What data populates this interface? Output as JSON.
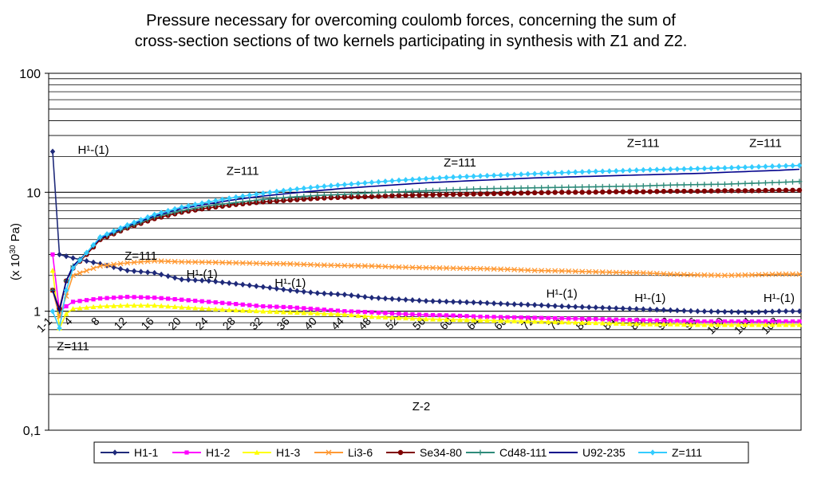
{
  "chart_data": {
    "type": "line",
    "title_line1": "Pressure necessary for overcoming coulomb forces, concerning the sum of",
    "title_line2": "cross-section sections of two kernels participating in synthesis with Z1 and Z2.",
    "xlabel": "Z-2",
    "ylabel": "(x 10^30 Pa)",
    "y_scale": "log",
    "ylim": [
      0.1,
      100
    ],
    "y_ticks": [
      {
        "value": 100,
        "label": "100"
      },
      {
        "value": 10,
        "label": "10"
      },
      {
        "value": 1,
        "label": "1"
      },
      {
        "value": 0.1,
        "label": "0,1"
      }
    ],
    "x_range": [
      1,
      111
    ],
    "x_tick_labels": [
      "1-1",
      "4",
      "8",
      "12",
      "16",
      "20",
      "24",
      "28",
      "32",
      "36",
      "40",
      "44",
      "48",
      "52",
      "56",
      "60",
      "64",
      "68",
      "72",
      "76",
      "80",
      "84",
      "88",
      "92",
      "96",
      "100",
      "104",
      "108"
    ],
    "grid": true,
    "legend_position": "bottom",
    "series": [
      {
        "name": "H1-1",
        "color": "#1f2a7a",
        "marker": "diamond",
        "points": [
          [
            1,
            22
          ],
          [
            2,
            3.0
          ],
          [
            4,
            2.8
          ],
          [
            8,
            2.5
          ],
          [
            12,
            2.2
          ],
          [
            16,
            2.1
          ],
          [
            20,
            1.85
          ],
          [
            24,
            1.8
          ],
          [
            28,
            1.7
          ],
          [
            32,
            1.6
          ],
          [
            36,
            1.5
          ],
          [
            40,
            1.42
          ],
          [
            44,
            1.38
          ],
          [
            48,
            1.3
          ],
          [
            52,
            1.26
          ],
          [
            56,
            1.22
          ],
          [
            60,
            1.2
          ],
          [
            64,
            1.18
          ],
          [
            68,
            1.15
          ],
          [
            72,
            1.13
          ],
          [
            76,
            1.1
          ],
          [
            80,
            1.08
          ],
          [
            84,
            1.06
          ],
          [
            88,
            1.04
          ],
          [
            92,
            1.02
          ],
          [
            96,
            1.0
          ],
          [
            100,
            0.99
          ],
          [
            104,
            0.98
          ],
          [
            108,
            1.0
          ],
          [
            111,
            1.0
          ]
        ]
      },
      {
        "name": "H1-2",
        "color": "#ff00ff",
        "marker": "square",
        "points": [
          [
            1,
            3.0
          ],
          [
            2,
            1.0
          ],
          [
            3,
            1.1
          ],
          [
            4,
            1.2
          ],
          [
            8,
            1.28
          ],
          [
            12,
            1.32
          ],
          [
            16,
            1.3
          ],
          [
            20,
            1.25
          ],
          [
            24,
            1.2
          ],
          [
            28,
            1.15
          ],
          [
            32,
            1.1
          ],
          [
            36,
            1.08
          ],
          [
            40,
            1.04
          ],
          [
            44,
            1.0
          ],
          [
            48,
            0.98
          ],
          [
            52,
            0.95
          ],
          [
            56,
            0.93
          ],
          [
            60,
            0.92
          ],
          [
            64,
            0.9
          ],
          [
            68,
            0.89
          ],
          [
            72,
            0.88
          ],
          [
            76,
            0.87
          ],
          [
            80,
            0.86
          ],
          [
            84,
            0.85
          ],
          [
            88,
            0.84
          ],
          [
            92,
            0.83
          ],
          [
            96,
            0.82
          ],
          [
            100,
            0.82
          ],
          [
            104,
            0.82
          ],
          [
            108,
            0.82
          ],
          [
            111,
            0.82
          ]
        ]
      },
      {
        "name": "H1-3",
        "color": "#ffff00",
        "marker": "triangle",
        "points": [
          [
            1,
            2.2
          ],
          [
            2,
            0.72
          ],
          [
            3,
            0.95
          ],
          [
            4,
            1.05
          ],
          [
            8,
            1.1
          ],
          [
            12,
            1.12
          ],
          [
            16,
            1.12
          ],
          [
            20,
            1.08
          ],
          [
            24,
            1.05
          ],
          [
            28,
            1.02
          ],
          [
            32,
            1.0
          ],
          [
            36,
            0.98
          ],
          [
            40,
            0.96
          ],
          [
            44,
            0.94
          ],
          [
            48,
            0.9
          ],
          [
            52,
            0.88
          ],
          [
            56,
            0.86
          ],
          [
            60,
            0.85
          ],
          [
            64,
            0.84
          ],
          [
            68,
            0.83
          ],
          [
            72,
            0.82
          ],
          [
            76,
            0.81
          ],
          [
            80,
            0.8
          ],
          [
            84,
            0.79
          ],
          [
            88,
            0.78
          ],
          [
            92,
            0.78
          ],
          [
            96,
            0.77
          ],
          [
            100,
            0.77
          ],
          [
            104,
            0.77
          ],
          [
            108,
            0.77
          ],
          [
            111,
            0.77
          ]
        ]
      },
      {
        "name": "Li3-6",
        "color": "#ff9933",
        "marker": "x",
        "points": [
          [
            1,
            1.5
          ],
          [
            2,
            0.9
          ],
          [
            4,
            2.0
          ],
          [
            8,
            2.4
          ],
          [
            12,
            2.55
          ],
          [
            16,
            2.65
          ],
          [
            20,
            2.6
          ],
          [
            24,
            2.58
          ],
          [
            28,
            2.55
          ],
          [
            32,
            2.52
          ],
          [
            36,
            2.5
          ],
          [
            40,
            2.45
          ],
          [
            44,
            2.42
          ],
          [
            48,
            2.4
          ],
          [
            52,
            2.35
          ],
          [
            56,
            2.32
          ],
          [
            60,
            2.3
          ],
          [
            64,
            2.28
          ],
          [
            68,
            2.25
          ],
          [
            72,
            2.2
          ],
          [
            76,
            2.18
          ],
          [
            80,
            2.15
          ],
          [
            84,
            2.12
          ],
          [
            88,
            2.1
          ],
          [
            92,
            2.05
          ],
          [
            96,
            2.02
          ],
          [
            100,
            2.0
          ],
          [
            104,
            2.02
          ],
          [
            108,
            2.05
          ],
          [
            111,
            2.05
          ]
        ]
      },
      {
        "name": "Se34-80",
        "color": "#800000",
        "marker": "circle",
        "points": [
          [
            1,
            1.5
          ],
          [
            2,
            1.05
          ],
          [
            3,
            1.8
          ],
          [
            4,
            2.3
          ],
          [
            6,
            3.0
          ],
          [
            8,
            4.0
          ],
          [
            12,
            5.0
          ],
          [
            16,
            6.0
          ],
          [
            20,
            6.8
          ],
          [
            24,
            7.4
          ],
          [
            28,
            7.9
          ],
          [
            32,
            8.3
          ],
          [
            36,
            8.6
          ],
          [
            40,
            8.9
          ],
          [
            44,
            9.1
          ],
          [
            48,
            9.2
          ],
          [
            52,
            9.4
          ],
          [
            56,
            9.5
          ],
          [
            60,
            9.6
          ],
          [
            64,
            9.7
          ],
          [
            68,
            9.8
          ],
          [
            72,
            9.9
          ],
          [
            76,
            10.0
          ],
          [
            80,
            10.0
          ],
          [
            84,
            10.1
          ],
          [
            88,
            10.1
          ],
          [
            92,
            10.2
          ],
          [
            96,
            10.2
          ],
          [
            100,
            10.3
          ],
          [
            104,
            10.3
          ],
          [
            108,
            10.4
          ],
          [
            111,
            10.4
          ]
        ]
      },
      {
        "name": "Cd48-111",
        "color": "#2e8b7a",
        "marker": "plus",
        "points": [
          [
            1,
            1.5
          ],
          [
            2,
            1.0
          ],
          [
            3,
            1.8
          ],
          [
            4,
            2.4
          ],
          [
            6,
            3.1
          ],
          [
            8,
            4.1
          ],
          [
            12,
            5.1
          ],
          [
            16,
            6.2
          ],
          [
            20,
            7.0
          ],
          [
            24,
            7.7
          ],
          [
            28,
            8.2
          ],
          [
            32,
            8.7
          ],
          [
            36,
            9.1
          ],
          [
            40,
            9.4
          ],
          [
            44,
            9.6
          ],
          [
            48,
            9.9
          ],
          [
            52,
            10.1
          ],
          [
            56,
            10.3
          ],
          [
            60,
            10.5
          ],
          [
            64,
            10.7
          ],
          [
            68,
            10.8
          ],
          [
            72,
            10.9
          ],
          [
            76,
            11.0
          ],
          [
            80,
            11.1
          ],
          [
            84,
            11.2
          ],
          [
            88,
            11.3
          ],
          [
            92,
            11.5
          ],
          [
            96,
            11.6
          ],
          [
            100,
            11.7
          ],
          [
            104,
            11.9
          ],
          [
            108,
            12.1
          ],
          [
            111,
            12.3
          ]
        ]
      },
      {
        "name": "U92-235",
        "color": "#00008b",
        "marker": "none",
        "points": [
          [
            1,
            1.5
          ],
          [
            2,
            1.0
          ],
          [
            3,
            1.8
          ],
          [
            4,
            2.4
          ],
          [
            6,
            3.1
          ],
          [
            8,
            4.1
          ],
          [
            12,
            5.2
          ],
          [
            16,
            6.3
          ],
          [
            20,
            7.3
          ],
          [
            24,
            8.0
          ],
          [
            28,
            8.7
          ],
          [
            32,
            9.3
          ],
          [
            36,
            9.8
          ],
          [
            40,
            10.3
          ],
          [
            44,
            10.8
          ],
          [
            48,
            11.2
          ],
          [
            52,
            11.6
          ],
          [
            56,
            12.0
          ],
          [
            60,
            12.3
          ],
          [
            64,
            12.6
          ],
          [
            68,
            12.9
          ],
          [
            72,
            13.2
          ],
          [
            76,
            13.4
          ],
          [
            80,
            13.6
          ],
          [
            84,
            13.8
          ],
          [
            88,
            14.0
          ],
          [
            92,
            14.2
          ],
          [
            96,
            14.4
          ],
          [
            100,
            14.7
          ],
          [
            104,
            15.0
          ],
          [
            108,
            15.3
          ],
          [
            111,
            15.6
          ]
        ]
      },
      {
        "name": "Z=111",
        "color": "#33ccff",
        "marker": "diamond",
        "points": [
          [
            1,
            1.0
          ],
          [
            2,
            0.72
          ],
          [
            3,
            1.5
          ],
          [
            4,
            2.3
          ],
          [
            6,
            3.1
          ],
          [
            8,
            4.2
          ],
          [
            12,
            5.3
          ],
          [
            16,
            6.5
          ],
          [
            20,
            7.5
          ],
          [
            24,
            8.3
          ],
          [
            28,
            9.1
          ],
          [
            32,
            9.8
          ],
          [
            36,
            10.5
          ],
          [
            40,
            11.1
          ],
          [
            44,
            11.6
          ],
          [
            48,
            12.1
          ],
          [
            52,
            12.6
          ],
          [
            56,
            13.0
          ],
          [
            60,
            13.4
          ],
          [
            64,
            13.7
          ],
          [
            68,
            14.0
          ],
          [
            72,
            14.3
          ],
          [
            76,
            14.6
          ],
          [
            80,
            14.9
          ],
          [
            84,
            15.1
          ],
          [
            88,
            15.4
          ],
          [
            92,
            15.6
          ],
          [
            96,
            15.8
          ],
          [
            100,
            16.0
          ],
          [
            104,
            16.3
          ],
          [
            108,
            16.6
          ],
          [
            111,
            16.8
          ]
        ]
      }
    ],
    "annotations": [
      {
        "text": "H¹-(1)",
        "x": 7,
        "y": 21
      },
      {
        "text": "Z=111",
        "x": 29,
        "y": 14
      },
      {
        "text": "Z=111",
        "x": 61,
        "y": 16.5
      },
      {
        "text": "Z=111",
        "x": 88,
        "y": 24
      },
      {
        "text": "Z=111",
        "x": 106,
        "y": 24
      },
      {
        "text": "Z=111",
        "x": 14,
        "y": 2.7
      },
      {
        "text": "H¹-(1)",
        "x": 23,
        "y": 1.9
      },
      {
        "text": "H¹-(1)",
        "x": 36,
        "y": 1.6
      },
      {
        "text": "H¹-(1)",
        "x": 76,
        "y": 1.3
      },
      {
        "text": "H¹-(1)",
        "x": 89,
        "y": 1.2
      },
      {
        "text": "H¹-(1)",
        "x": 108,
        "y": 1.2
      },
      {
        "text": "Z=111",
        "x": 4,
        "y": 0.47
      }
    ]
  }
}
